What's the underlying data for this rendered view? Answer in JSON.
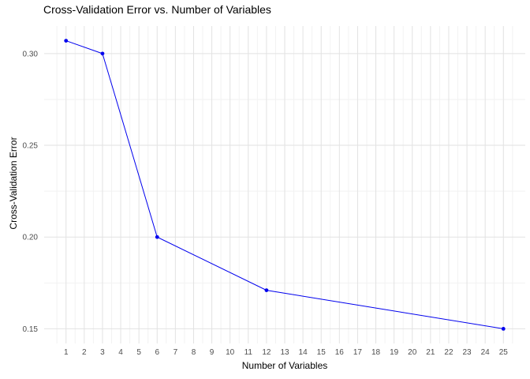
{
  "chart_data": {
    "type": "line",
    "title": "Cross-Validation Error vs. Number of Variables",
    "xlabel": "Number of Variables",
    "ylabel": "Cross-Validation Error",
    "x": [
      1,
      3,
      6,
      12,
      25
    ],
    "y": [
      0.307,
      0.3,
      0.2,
      0.171,
      0.15
    ],
    "x_ticks": [
      1,
      2,
      3,
      4,
      5,
      6,
      7,
      8,
      9,
      10,
      11,
      12,
      13,
      14,
      15,
      16,
      17,
      18,
      19,
      20,
      21,
      22,
      23,
      24,
      25
    ],
    "x_tick_labels": [
      "1",
      "2",
      "3",
      "4",
      "5",
      "6",
      "7",
      "8",
      "9",
      "10",
      "11",
      "12",
      "13",
      "14",
      "15",
      "16",
      "17",
      "18",
      "19",
      "20",
      "21",
      "22",
      "23",
      "24",
      "25"
    ],
    "y_ticks": [
      0.15,
      0.2,
      0.25,
      0.3
    ],
    "y_tick_labels": [
      "0.15",
      "0.20",
      "0.25",
      "0.30"
    ],
    "xlim": [
      -0.2,
      26.2
    ],
    "ylim": [
      0.142,
      0.315
    ],
    "grid": "major-and-minor",
    "legend": "none",
    "colors": {
      "line": "#0000EE",
      "point": "#0000EE",
      "grid_major": "#E2E2E2",
      "grid_minor": "#F2F2F2",
      "tick_label": "#4D4D4D",
      "text": "#000000",
      "background": "#FFFFFF"
    }
  }
}
